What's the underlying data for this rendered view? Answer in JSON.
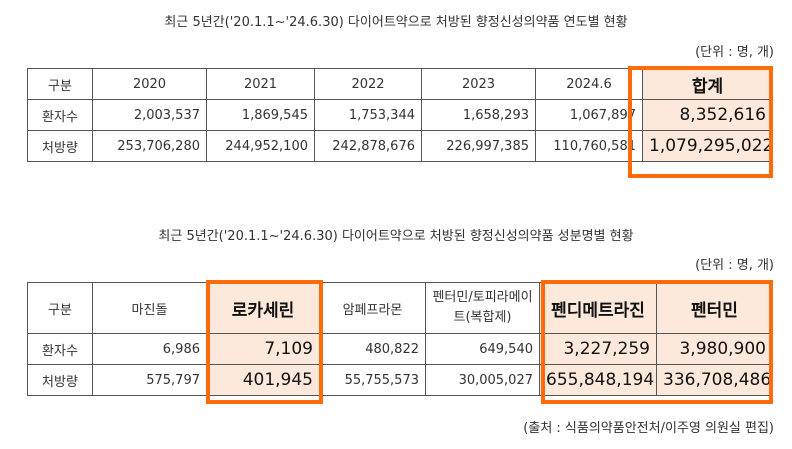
{
  "table1": {
    "title": "최근 5년간('20.1.1~'24.6.30) 다이어트약으로 처방된 향정신성의약품 연도별 현황",
    "unit": "(단위 : 명, 개)",
    "headers": [
      "구분",
      "2020",
      "2021",
      "2022",
      "2023",
      "2024.6",
      "합계"
    ],
    "rows": [
      {
        "label": "환자수",
        "values": [
          "2,003,537",
          "1,869,545",
          "1,753,344",
          "1,658,293",
          "1,067,897",
          "8,352,616"
        ]
      },
      {
        "label": "처방량",
        "values": [
          "253,706,280",
          "244,952,100",
          "242,878,676",
          "226,997,385",
          "110,760,581",
          "1,079,295,022"
        ]
      }
    ]
  },
  "table2": {
    "title": "최근 5년간('20.1.1~'24.6.30) 다이어트약으로 처방된 향정신성의약품 성분명별 현황",
    "unit": "(단위 : 명, 개)",
    "headers": [
      "구분",
      "마진돌",
      "로카세린",
      "암페프라몬",
      "펜터민/토피라메이트(복합제)",
      "펜디메트라진",
      "펜터민"
    ],
    "rows": [
      {
        "label": "환자수",
        "values": [
          "6,986",
          "7,109",
          "480,822",
          "649,540",
          "3,227,259",
          "3,980,900"
        ]
      },
      {
        "label": "처방량",
        "values": [
          "575,797",
          "401,945",
          "55,755,573",
          "30,005,027",
          "655,848,194",
          "336,708,486"
        ]
      }
    ]
  },
  "source": "(출처 : 식품의약품안전처/이주영 의원실 편집)",
  "colors": {
    "highlight_border": "#ff6a0a",
    "highlight_fill": "#fde9dc"
  }
}
